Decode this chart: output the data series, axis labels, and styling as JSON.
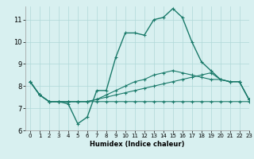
{
  "xlabel": "Humidex (Indice chaleur)",
  "bg_color": "#d8f0f0",
  "grid_color": "#b0d8d8",
  "line_color": "#1a7a6a",
  "xlim": [
    -0.5,
    23
  ],
  "ylim": [
    6,
    11.6
  ],
  "yticks": [
    6,
    7,
    8,
    9,
    10,
    11
  ],
  "xticks": [
    0,
    1,
    2,
    3,
    4,
    5,
    6,
    7,
    8,
    9,
    10,
    11,
    12,
    13,
    14,
    15,
    16,
    17,
    18,
    19,
    20,
    21,
    22,
    23
  ],
  "series": [
    [
      8.2,
      7.6,
      7.3,
      7.3,
      7.2,
      6.3,
      6.6,
      7.8,
      7.8,
      9.3,
      10.4,
      10.4,
      10.3,
      11.0,
      11.1,
      11.5,
      11.1,
      10.0,
      9.1,
      8.7,
      8.3,
      8.2,
      8.2,
      7.4
    ],
    [
      8.2,
      7.6,
      7.3,
      7.3,
      7.3,
      7.3,
      7.3,
      7.4,
      7.5,
      7.6,
      7.7,
      7.8,
      7.9,
      8.0,
      8.1,
      8.2,
      8.3,
      8.4,
      8.5,
      8.6,
      8.3,
      8.2,
      8.2,
      7.4
    ],
    [
      8.2,
      7.6,
      7.3,
      7.3,
      7.3,
      7.3,
      7.3,
      7.3,
      7.3,
      7.3,
      7.3,
      7.3,
      7.3,
      7.3,
      7.3,
      7.3,
      7.3,
      7.3,
      7.3,
      7.3,
      7.3,
      7.3,
      7.3,
      7.3
    ],
    [
      8.2,
      7.6,
      7.3,
      7.3,
      7.3,
      7.3,
      7.3,
      7.4,
      7.6,
      7.8,
      8.0,
      8.2,
      8.3,
      8.5,
      8.6,
      8.7,
      8.6,
      8.5,
      8.4,
      8.3,
      8.3,
      8.2,
      8.2,
      7.4
    ]
  ]
}
